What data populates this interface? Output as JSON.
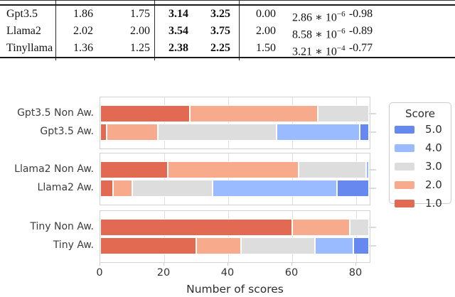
{
  "table": {
    "rows": [
      {
        "model": "Gpt3.5",
        "mean_non_aw": "1.86",
        "median_non_aw": "1.75",
        "mean_aw": "3.14",
        "median_aw": "3.25",
        "stat": "0.00",
        "p_base": "2.86 ∗ 10",
        "p_exp": "−6",
        "corr": "-0.98"
      },
      {
        "model": "Llama2",
        "mean_non_aw": "2.02",
        "median_non_aw": "2.00",
        "mean_aw": "3.54",
        "median_aw": "3.75",
        "stat": "2.00",
        "p_base": "8.58 ∗ 10",
        "p_exp": "−6",
        "corr": "-0.89"
      },
      {
        "model": "Tinyllama",
        "mean_non_aw": "1.36",
        "median_non_aw": "1.25",
        "mean_aw": "2.38",
        "median_aw": "2.25",
        "stat": "1.50",
        "p_base": "3.21 ∗ 10",
        "p_exp": "−4",
        "corr": "-0.77"
      }
    ]
  },
  "chart_data": {
    "type": "bar",
    "subtype": "horizontal-stacked",
    "xlabel": "Number of scores",
    "x_ticks": [
      0,
      20,
      40,
      60,
      80
    ],
    "xlim": [
      0,
      84.5
    ],
    "grid": "vertical",
    "score_order": [
      "1.0",
      "2.0",
      "3.0",
      "4.0",
      "5.0"
    ],
    "legend": {
      "title": "Score",
      "position": "right",
      "entries": [
        {
          "label": "5.0",
          "color": "#6788ee"
        },
        {
          "label": "4.0",
          "color": "#9abbff"
        },
        {
          "label": "3.0",
          "color": "#dddddd"
        },
        {
          "label": "2.0",
          "color": "#f7aa8c"
        },
        {
          "label": "1.0",
          "color": "#e26952"
        }
      ]
    },
    "panels": [
      {
        "model": "Gpt3.5",
        "rows": [
          {
            "label": "Gpt3.5 Non Aw.",
            "values": {
              "1.0": 28,
              "2.0": 40,
              "3.0": 16,
              "4.0": 0,
              "5.0": 0
            }
          },
          {
            "label": "Gpt3.5 Aw.",
            "values": {
              "1.0": 2,
              "2.0": 16,
              "3.0": 37,
              "4.0": 26,
              "5.0": 3
            }
          }
        ]
      },
      {
        "model": "Llama2",
        "rows": [
          {
            "label": "Llama2 Non Aw.",
            "values": {
              "1.0": 21,
              "2.0": 41,
              "3.0": 21,
              "4.0": 1,
              "5.0": 0
            }
          },
          {
            "label": "Llama2 Aw.",
            "values": {
              "1.0": 4,
              "2.0": 6,
              "3.0": 25,
              "4.0": 39,
              "5.0": 10
            }
          }
        ]
      },
      {
        "model": "Tiny",
        "rows": [
          {
            "label": "Tiny Non Aw.",
            "values": {
              "1.0": 60,
              "2.0": 18,
              "3.0": 6,
              "4.0": 0,
              "5.0": 0
            }
          },
          {
            "label": "Tiny Aw.",
            "values": {
              "1.0": 30,
              "2.0": 14,
              "3.0": 23,
              "4.0": 12,
              "5.0": 5
            }
          }
        ]
      }
    ]
  }
}
